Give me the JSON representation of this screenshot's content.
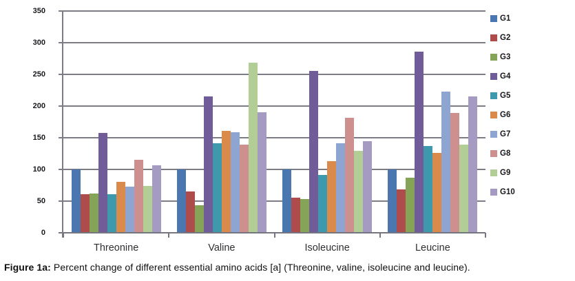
{
  "figure": {
    "caption_prefix": "Figure 1a:",
    "caption_text": " Percent change of different essential amino acids [a] (Threonine, valine, isoleucine and leucine)."
  },
  "chart_data": {
    "type": "bar",
    "title": "",
    "xlabel": "",
    "ylabel": "",
    "categories": [
      "Threonine",
      "Valine",
      "Isoleucine",
      "Leucine"
    ],
    "series": [
      {
        "name": "G1",
        "color": "#4A77B0",
        "values": [
          100,
          100,
          100,
          100
        ]
      },
      {
        "name": "G2",
        "color": "#AE4C4B",
        "values": [
          61,
          65,
          56,
          69
        ]
      },
      {
        "name": "G3",
        "color": "#85A457",
        "values": [
          62,
          43,
          53,
          87
        ]
      },
      {
        "name": "G4",
        "color": "#6F5C98",
        "values": [
          158,
          215,
          256,
          286
        ]
      },
      {
        "name": "G5",
        "color": "#3F99AC",
        "values": [
          61,
          141,
          91,
          137
        ]
      },
      {
        "name": "G6",
        "color": "#DA8A4A",
        "values": [
          81,
          161,
          113,
          126
        ]
      },
      {
        "name": "G7",
        "color": "#8FA5D1",
        "values": [
          73,
          159,
          141,
          223
        ]
      },
      {
        "name": "G8",
        "color": "#CD908F",
        "values": [
          115,
          139,
          182,
          189
        ]
      },
      {
        "name": "G9",
        "color": "#B3CD97",
        "values": [
          74,
          269,
          129,
          139
        ]
      },
      {
        "name": "G10",
        "color": "#A49AC2",
        "values": [
          107,
          190,
          145,
          215
        ]
      }
    ],
    "ylim": [
      0,
      350
    ],
    "ytick_step": 50,
    "grid": true,
    "legend_position": "right",
    "gridline_color": "#7b7b85",
    "tick_label_color": "#17171c"
  }
}
